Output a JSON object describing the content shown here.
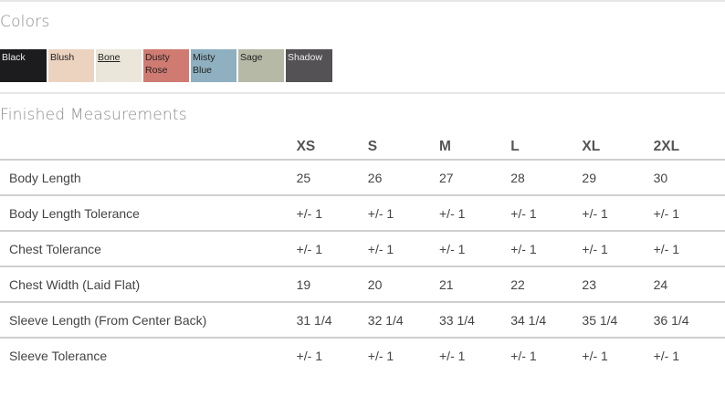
{
  "colors_section": {
    "title": "Colors",
    "swatches": [
      {
        "name": "Black",
        "color": "#1c1b1e"
      },
      {
        "name": "Blush",
        "color": "#ecd3c0"
      },
      {
        "name": "Bone",
        "color": "#ebe6da"
      },
      {
        "name": "Dusty Rose",
        "color": "#cf7b72"
      },
      {
        "name": "Misty Blue",
        "color": "#8fb0c0"
      },
      {
        "name": "Sage",
        "color": "#b5b9a6"
      },
      {
        "name": "Shadow",
        "color": "#545254"
      }
    ]
  },
  "measurements": {
    "title": "Finished Measurements",
    "sizes": [
      "XS",
      "S",
      "M",
      "L",
      "XL",
      "2XL"
    ],
    "rows": [
      {
        "label": "Body Length",
        "values": [
          "25",
          "26",
          "27",
          "28",
          "29",
          "30"
        ]
      },
      {
        "label": "Body Length Tolerance",
        "values": [
          "+/- 1",
          "+/- 1",
          "+/- 1",
          "+/- 1",
          "+/- 1",
          "+/- 1"
        ]
      },
      {
        "label": "Chest Tolerance",
        "values": [
          "+/- 1",
          "+/- 1",
          "+/- 1",
          "+/- 1",
          "+/- 1",
          "+/- 1"
        ]
      },
      {
        "label": "Chest Width (Laid Flat)",
        "values": [
          "19",
          "20",
          "21",
          "22",
          "23",
          "24"
        ]
      },
      {
        "label": "Sleeve Length (From Center Back)",
        "values": [
          "31 1/4",
          "32 1/4",
          "33 1/4",
          "34 1/4",
          "35 1/4",
          "36 1/4"
        ]
      },
      {
        "label": "Sleeve Tolerance",
        "values": [
          "+/- 1",
          "+/- 1",
          "+/- 1",
          "+/- 1",
          "+/- 1",
          "+/- 1"
        ]
      }
    ]
  }
}
